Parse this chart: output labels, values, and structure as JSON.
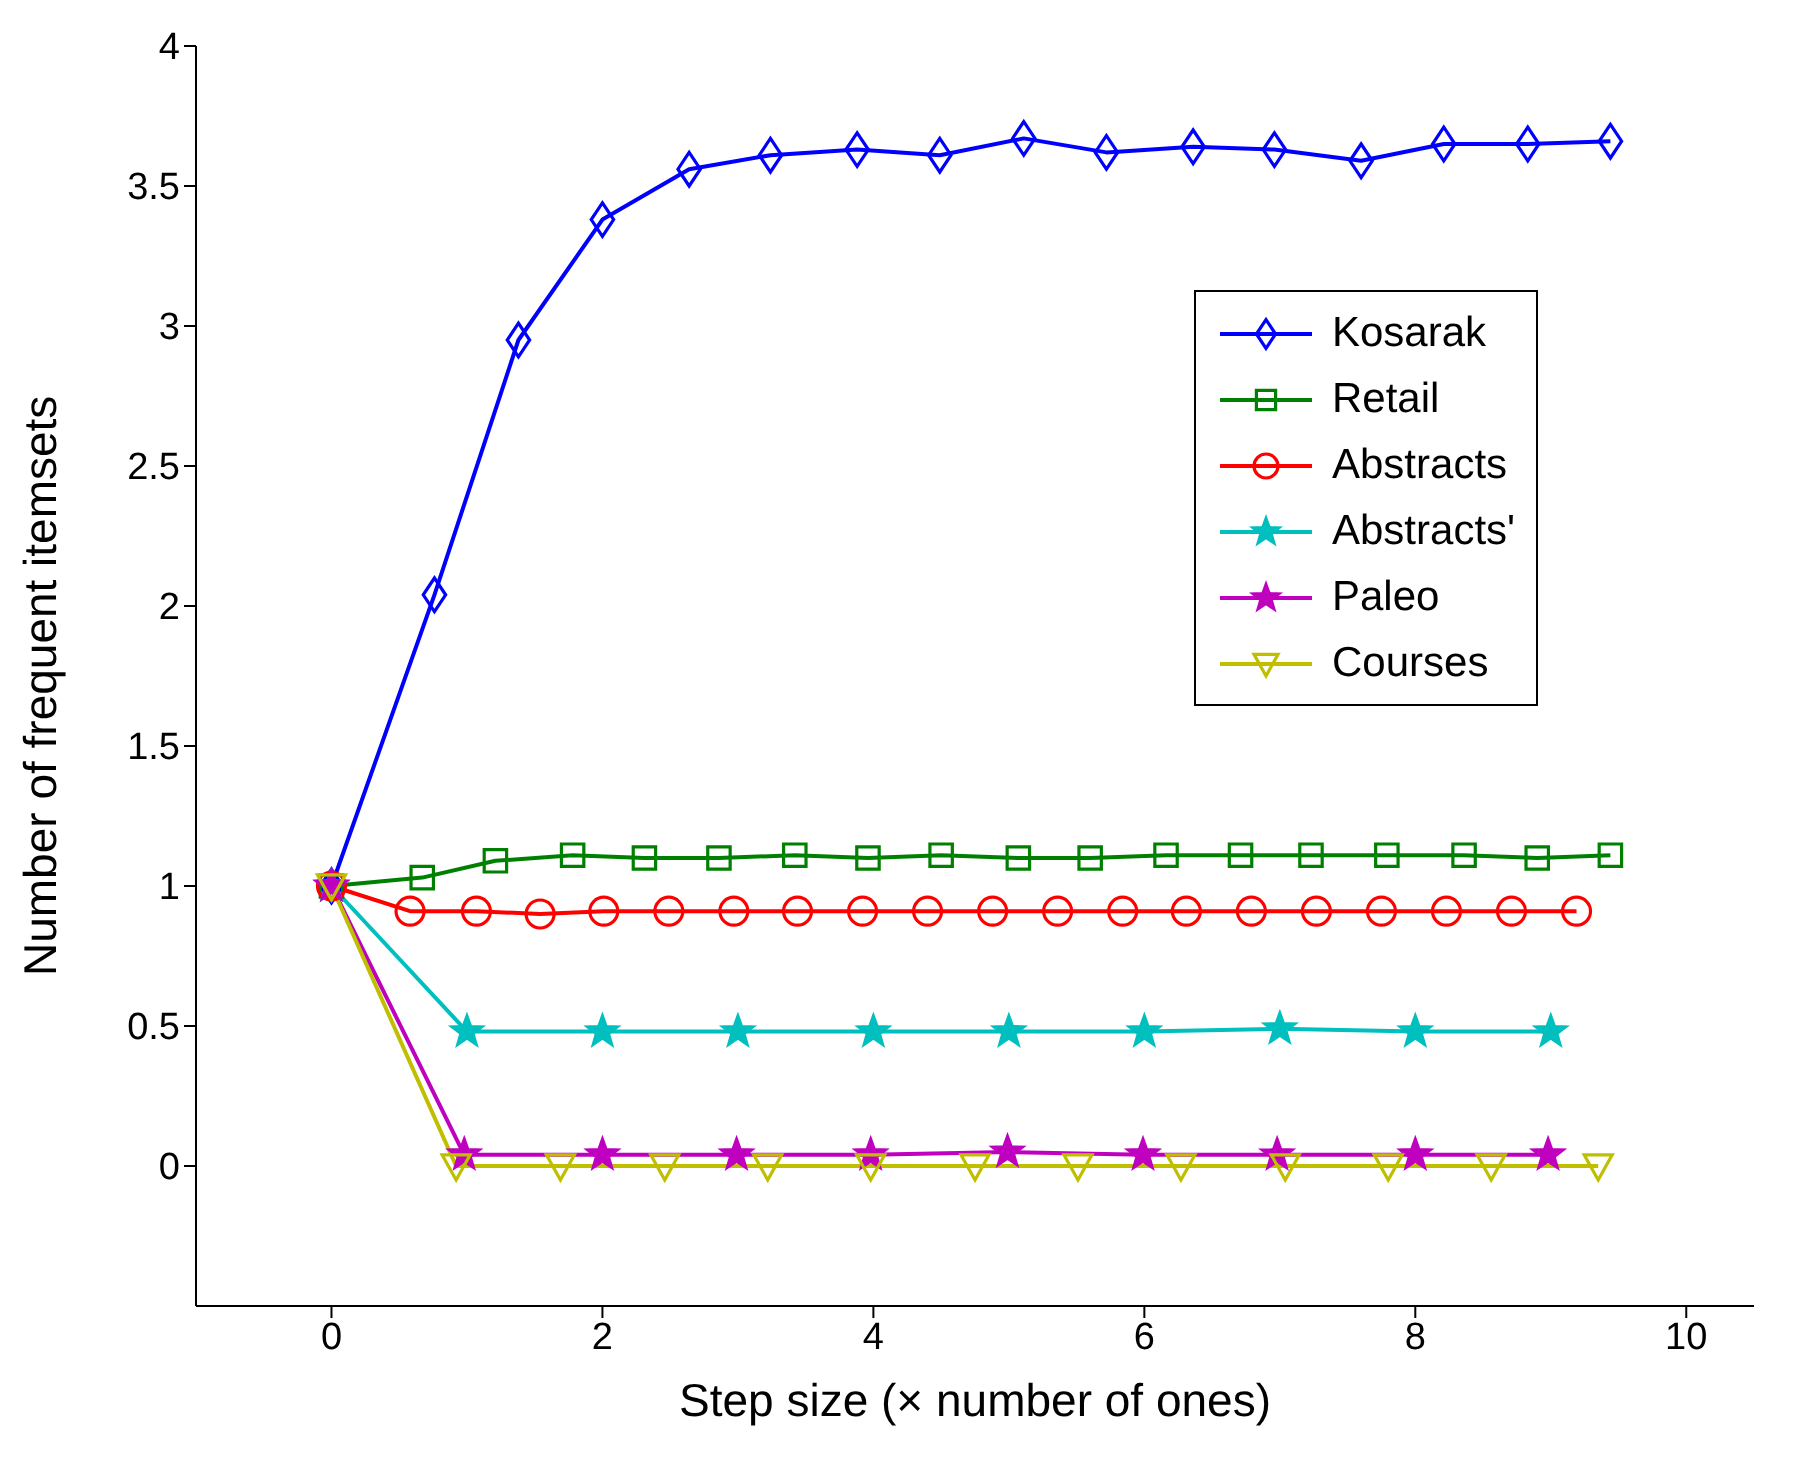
{
  "chart_data": {
    "type": "line",
    "xlabel": "Step size (× number of ones)",
    "ylabel": "Number of frequent itemsets",
    "xlim": [
      -1,
      10.5
    ],
    "xticks": [
      0,
      2,
      4,
      6,
      8,
      10
    ],
    "ylim": [
      -0.5,
      4
    ],
    "yticks": [
      0,
      0.5,
      1,
      1.5,
      2,
      2.5,
      3,
      3.5,
      4
    ],
    "grid": false,
    "legend": "top right",
    "line_style": "solid",
    "series": [
      {
        "name": "Kosarak",
        "color": "#0000ff",
        "marker": "diamond",
        "x": [
          0,
          0.76,
          1.38,
          2.0,
          2.64,
          3.24,
          3.88,
          4.49,
          5.11,
          5.72,
          6.36,
          6.96,
          7.6,
          8.21,
          8.83,
          9.44
        ],
        "values": [
          1,
          2.04,
          2.95,
          3.38,
          3.56,
          3.61,
          3.63,
          3.61,
          3.67,
          3.62,
          3.64,
          3.63,
          3.59,
          3.65,
          3.65,
          3.66
        ]
      },
      {
        "name": "Retail",
        "color": "#008000",
        "marker": "square",
        "x": [
          0,
          0.67,
          1.21,
          1.78,
          2.31,
          2.86,
          3.42,
          3.96,
          4.5,
          5.07,
          5.6,
          6.16,
          6.71,
          7.23,
          7.79,
          8.36,
          8.9,
          9.44
        ],
        "values": [
          1,
          1.03,
          1.09,
          1.11,
          1.1,
          1.1,
          1.11,
          1.1,
          1.11,
          1.1,
          1.1,
          1.11,
          1.11,
          1.11,
          1.11,
          1.11,
          1.1,
          1.11
        ]
      },
      {
        "name": "Abstracts",
        "color": "#ff0000",
        "marker": "circle",
        "x": [
          0,
          0.58,
          1.07,
          1.54,
          2.01,
          2.49,
          2.97,
          3.44,
          3.92,
          4.4,
          4.88,
          5.36,
          5.84,
          6.31,
          6.79,
          7.27,
          7.75,
          8.23,
          8.71,
          9.19
        ],
        "values": [
          1,
          0.91,
          0.91,
          0.9,
          0.91,
          0.91,
          0.91,
          0.91,
          0.91,
          0.91,
          0.91,
          0.91,
          0.91,
          0.91,
          0.91,
          0.91,
          0.91,
          0.91,
          0.91,
          0.91
        ]
      },
      {
        "name": "Abstracts'",
        "color": "#00bfbf",
        "marker": "star",
        "x": [
          0,
          1,
          2,
          3,
          4,
          5,
          6,
          7,
          8,
          9
        ],
        "values": [
          1,
          0.48,
          0.48,
          0.48,
          0.48,
          0.48,
          0.48,
          0.49,
          0.48,
          0.48
        ]
      },
      {
        "name": "Paleo",
        "color": "#bf00bf",
        "marker": "star",
        "x": [
          0,
          0.98,
          2.0,
          2.99,
          3.98,
          4.99,
          5.99,
          6.98,
          8.0,
          8.98
        ],
        "values": [
          1,
          0.04,
          0.04,
          0.04,
          0.04,
          0.05,
          0.04,
          0.04,
          0.04,
          0.04
        ]
      },
      {
        "name": "Courses",
        "color": "#bfbf00",
        "marker": "triangle",
        "x": [
          0,
          0.92,
          1.69,
          2.46,
          3.22,
          3.98,
          4.75,
          5.51,
          6.27,
          7.04,
          7.8,
          8.56,
          9.35
        ],
        "values": [
          1,
          0,
          0,
          0,
          0,
          0,
          0,
          0,
          0,
          0,
          0,
          0,
          0
        ]
      }
    ]
  }
}
